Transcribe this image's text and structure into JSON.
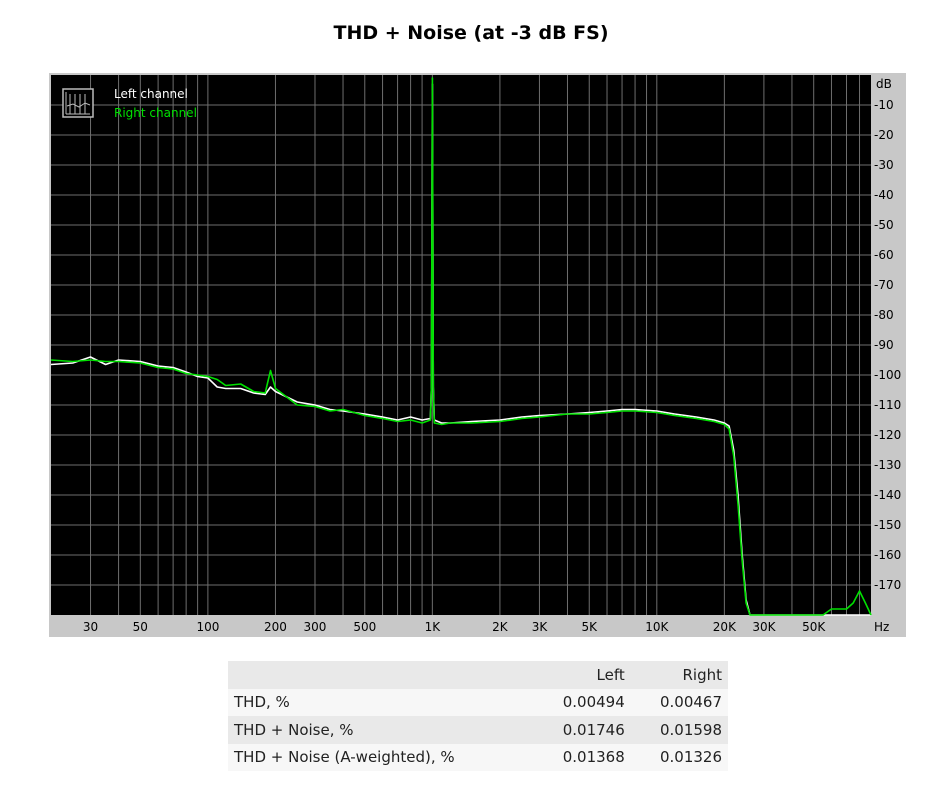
{
  "page": {
    "title": "THD + Noise (at -3 dB FS)"
  },
  "chart_data": {
    "type": "line",
    "title": "THD + Noise (at -3 dB FS)",
    "xscale": "log",
    "xlabel": "Hz",
    "ylabel": "dB",
    "xlim": [
      20,
      90000
    ],
    "ylim": [
      -180,
      0
    ],
    "grid": true,
    "legend_placement": "top-left",
    "x_ticks": [
      {
        "value": 30,
        "label": "30"
      },
      {
        "value": 50,
        "label": "50"
      },
      {
        "value": 100,
        "label": "100"
      },
      {
        "value": 200,
        "label": "200"
      },
      {
        "value": 300,
        "label": "300"
      },
      {
        "value": 500,
        "label": "500"
      },
      {
        "value": 1000,
        "label": "1K"
      },
      {
        "value": 2000,
        "label": "2K"
      },
      {
        "value": 3000,
        "label": "3K"
      },
      {
        "value": 5000,
        "label": "5K"
      },
      {
        "value": 10000,
        "label": "10K"
      },
      {
        "value": 20000,
        "label": "20K"
      },
      {
        "value": 30000,
        "label": "30K"
      },
      {
        "value": 50000,
        "label": "50K"
      }
    ],
    "y_ticks": [
      {
        "value": -10,
        "label": "-10"
      },
      {
        "value": -20,
        "label": "-20"
      },
      {
        "value": -30,
        "label": "-30"
      },
      {
        "value": -40,
        "label": "-40"
      },
      {
        "value": -50,
        "label": "-50"
      },
      {
        "value": -60,
        "label": "-60"
      },
      {
        "value": -70,
        "label": "-70"
      },
      {
        "value": -80,
        "label": "-80"
      },
      {
        "value": -90,
        "label": "-90"
      },
      {
        "value": -100,
        "label": "-100"
      },
      {
        "value": -110,
        "label": "-110"
      },
      {
        "value": -120,
        "label": "-120"
      },
      {
        "value": -130,
        "label": "-130"
      },
      {
        "value": -140,
        "label": "-140"
      },
      {
        "value": -150,
        "label": "-150"
      },
      {
        "value": -160,
        "label": "-160"
      },
      {
        "value": -170,
        "label": "-170"
      }
    ],
    "series": [
      {
        "name": "Left channel",
        "color": "#ffffff",
        "points": [
          [
            20,
            -96.5
          ],
          [
            25,
            -96
          ],
          [
            30,
            -94
          ],
          [
            35,
            -96.5
          ],
          [
            40,
            -95
          ],
          [
            50,
            -95.5
          ],
          [
            60,
            -97
          ],
          [
            70,
            -97.5
          ],
          [
            80,
            -99
          ],
          [
            90,
            -100.5
          ],
          [
            100,
            -101
          ],
          [
            110,
            -104
          ],
          [
            120,
            -104.5
          ],
          [
            140,
            -104.5
          ],
          [
            160,
            -106
          ],
          [
            180,
            -106.5
          ],
          [
            190,
            -104
          ],
          [
            200,
            -105.5
          ],
          [
            250,
            -109
          ],
          [
            300,
            -110
          ],
          [
            350,
            -111.5
          ],
          [
            400,
            -112
          ],
          [
            500,
            -113
          ],
          [
            600,
            -114
          ],
          [
            700,
            -115
          ],
          [
            800,
            -114
          ],
          [
            900,
            -115
          ],
          [
            980,
            -114.5
          ],
          [
            990,
            -104
          ],
          [
            1000,
            -3
          ],
          [
            1010,
            -104
          ],
          [
            1020,
            -115
          ],
          [
            1100,
            -116
          ],
          [
            1200,
            -116
          ],
          [
            1500,
            -115.5
          ],
          [
            2000,
            -115
          ],
          [
            2500,
            -114
          ],
          [
            3000,
            -113.5
          ],
          [
            4000,
            -113
          ],
          [
            5000,
            -112.5
          ],
          [
            6000,
            -112
          ],
          [
            7000,
            -111.5
          ],
          [
            8000,
            -111.5
          ],
          [
            10000,
            -112
          ],
          [
            12000,
            -113
          ],
          [
            15000,
            -114
          ],
          [
            18000,
            -115
          ],
          [
            20000,
            -116
          ],
          [
            21000,
            -117
          ],
          [
            22000,
            -125
          ],
          [
            23000,
            -140
          ],
          [
            24000,
            -160
          ],
          [
            25000,
            -175
          ],
          [
            26000,
            -180
          ],
          [
            90000,
            -180
          ]
        ]
      },
      {
        "name": "Right channel",
        "color": "#00e000",
        "points": [
          [
            20,
            -95
          ],
          [
            25,
            -95.5
          ],
          [
            30,
            -95
          ],
          [
            35,
            -95.5
          ],
          [
            40,
            -95.5
          ],
          [
            50,
            -96
          ],
          [
            60,
            -97.5
          ],
          [
            70,
            -98
          ],
          [
            80,
            -99.5
          ],
          [
            90,
            -100
          ],
          [
            100,
            -100.5
          ],
          [
            110,
            -101.5
          ],
          [
            120,
            -103.5
          ],
          [
            140,
            -103
          ],
          [
            160,
            -105.5
          ],
          [
            180,
            -106
          ],
          [
            190,
            -98.5
          ],
          [
            200,
            -104.5
          ],
          [
            250,
            -110
          ],
          [
            300,
            -110.5
          ],
          [
            350,
            -112
          ],
          [
            400,
            -111.5
          ],
          [
            500,
            -113.5
          ],
          [
            600,
            -114.5
          ],
          [
            700,
            -115.5
          ],
          [
            800,
            -115
          ],
          [
            900,
            -116
          ],
          [
            980,
            -115
          ],
          [
            990,
            -104
          ],
          [
            1000,
            -1
          ],
          [
            1010,
            -104
          ],
          [
            1020,
            -116
          ],
          [
            1100,
            -116.5
          ],
          [
            1200,
            -116
          ],
          [
            1500,
            -116
          ],
          [
            2000,
            -115.5
          ],
          [
            2500,
            -114.5
          ],
          [
            3000,
            -114
          ],
          [
            4000,
            -113
          ],
          [
            5000,
            -113
          ],
          [
            6000,
            -112.5
          ],
          [
            7000,
            -112
          ],
          [
            8000,
            -112
          ],
          [
            10000,
            -112.5
          ],
          [
            12000,
            -113.5
          ],
          [
            15000,
            -114.5
          ],
          [
            18000,
            -115.5
          ],
          [
            20000,
            -116.5
          ],
          [
            21000,
            -118
          ],
          [
            22000,
            -127
          ],
          [
            23000,
            -143
          ],
          [
            24000,
            -162
          ],
          [
            25000,
            -176
          ],
          [
            26000,
            -180
          ],
          [
            55000,
            -180
          ],
          [
            60000,
            -178
          ],
          [
            70000,
            -178
          ],
          [
            75000,
            -176
          ],
          [
            80000,
            -172
          ],
          [
            85000,
            -176
          ],
          [
            90000,
            -180
          ]
        ]
      }
    ]
  },
  "stats_table": {
    "headers": [
      "",
      "Left",
      "Right"
    ],
    "rows": [
      {
        "label": "THD, %",
        "left": "0.00494",
        "right": "0.00467"
      },
      {
        "label": "THD + Noise, %",
        "left": "0.01746",
        "right": "0.01598"
      },
      {
        "label": "THD + Noise (A-weighted), %",
        "left": "0.01368",
        "right": "0.01326"
      }
    ]
  }
}
